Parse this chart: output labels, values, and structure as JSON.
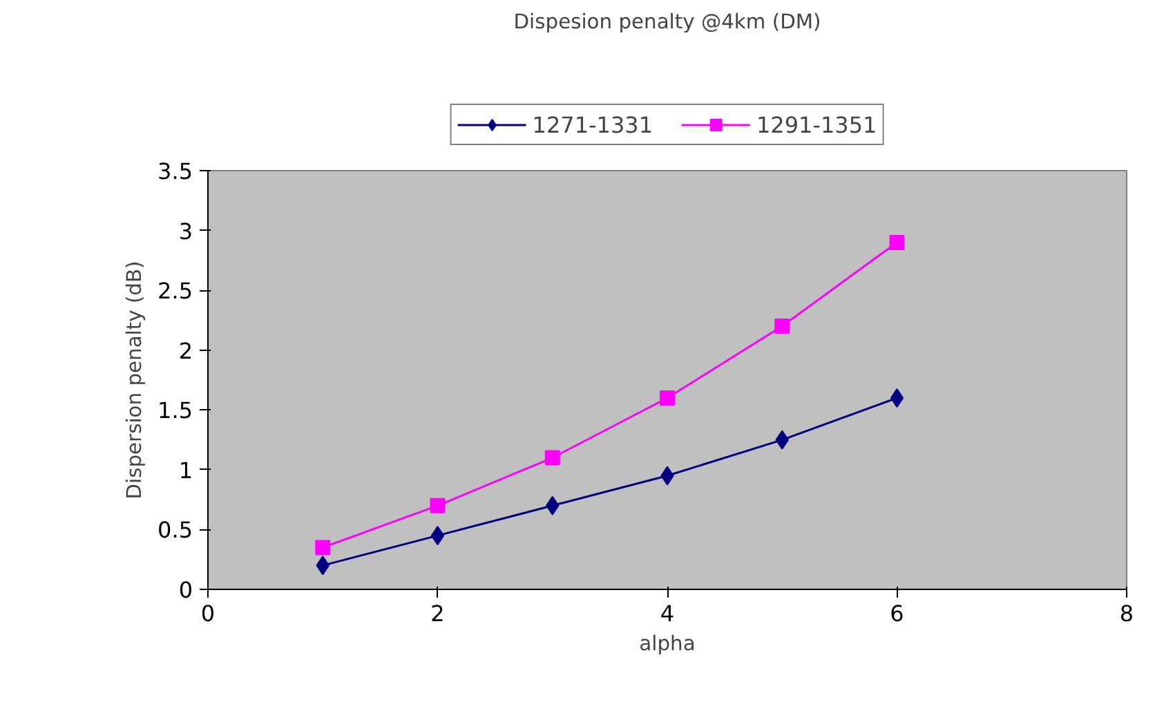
{
  "chart_data": {
    "type": "line",
    "title": "Dispesion penalty @4km (DM)",
    "xlabel": "alpha",
    "ylabel": "Dispersion penalty (dB)",
    "x": [
      1,
      2,
      3,
      4,
      5,
      6
    ],
    "series": [
      {
        "name": "1271-1331",
        "color": "#000080",
        "marker": "diamond",
        "values": [
          0.2,
          0.45,
          0.7,
          0.95,
          1.25,
          1.6
        ]
      },
      {
        "name": "1291-1351",
        "color": "#ff00ff",
        "marker": "square",
        "values": [
          0.35,
          0.7,
          1.1,
          1.6,
          2.2,
          2.9
        ]
      }
    ],
    "xlim": [
      0,
      8
    ],
    "xticks": [
      0,
      2,
      4,
      6,
      8
    ],
    "ylim": [
      0,
      3.5
    ],
    "yticks": [
      0,
      0.5,
      1,
      1.5,
      2,
      2.5,
      3,
      3.5
    ],
    "grid": false,
    "legend": "top"
  }
}
